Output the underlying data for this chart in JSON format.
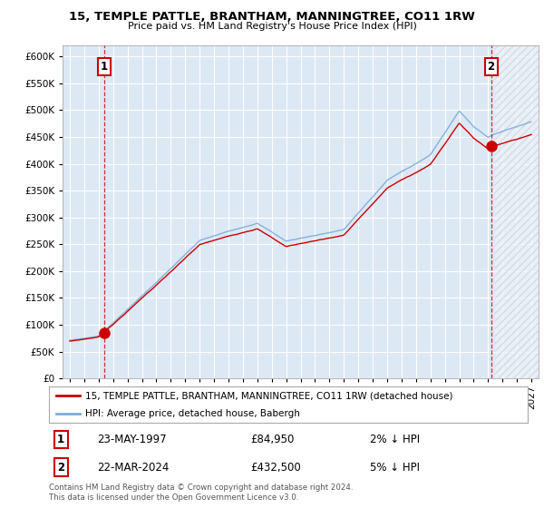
{
  "title": "15, TEMPLE PATTLE, BRANTHAM, MANNINGTREE, CO11 1RW",
  "subtitle": "Price paid vs. HM Land Registry's House Price Index (HPI)",
  "legend_line1": "15, TEMPLE PATTLE, BRANTHAM, MANNINGTREE, CO11 1RW (detached house)",
  "legend_line2": "HPI: Average price, detached house, Babergh",
  "transaction1_date": "23-MAY-1997",
  "transaction1_price": 84950,
  "transaction1_pct": "2% ↓ HPI",
  "transaction2_date": "22-MAR-2024",
  "transaction2_price": 432500,
  "transaction2_pct": "5% ↓ HPI",
  "footer": "Contains HM Land Registry data © Crown copyright and database right 2024.\nThis data is licensed under the Open Government Licence v3.0.",
  "ylim": [
    0,
    620000
  ],
  "ytick_values": [
    0,
    50000,
    100000,
    150000,
    200000,
    250000,
    300000,
    350000,
    400000,
    450000,
    500000,
    550000,
    600000
  ],
  "ytick_labels": [
    "£0",
    "£50K",
    "£100K",
    "£150K",
    "£200K",
    "£250K",
    "£300K",
    "£350K",
    "£400K",
    "£450K",
    "£500K",
    "£550K",
    "£600K"
  ],
  "xlim_start": 1994.5,
  "xlim_end": 2027.5,
  "xtick_years": [
    1995,
    1996,
    1997,
    1998,
    1999,
    2000,
    2001,
    2002,
    2003,
    2004,
    2005,
    2006,
    2007,
    2008,
    2009,
    2010,
    2011,
    2012,
    2013,
    2014,
    2015,
    2016,
    2017,
    2018,
    2019,
    2020,
    2021,
    2022,
    2023,
    2024,
    2025,
    2026,
    2027
  ],
  "plot_bg": "#dde8f5",
  "fig_bg": "#ffffff",
  "red_color": "#cc0000",
  "blue_color": "#7aacda",
  "grid_color": "#ffffff",
  "hatch_start": 2024.5,
  "t1_year": 1997.37,
  "t2_year": 2024.21,
  "marker_size": 8
}
